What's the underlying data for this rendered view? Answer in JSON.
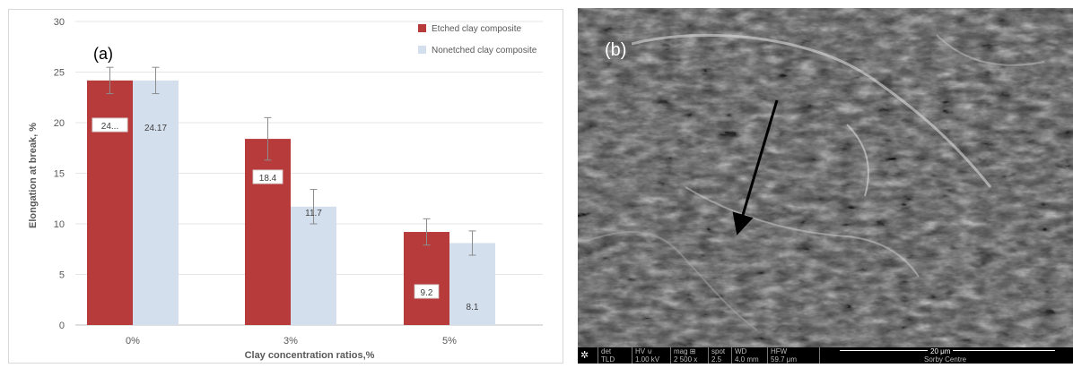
{
  "chart_data": {
    "type": "bar",
    "panel_label": "(a)",
    "xlabel": "Clay concentration ratios,%",
    "ylabel": "Elongation at break, %",
    "ylim": [
      0,
      30
    ],
    "yticks": [
      0,
      5,
      10,
      15,
      20,
      25,
      30
    ],
    "categories": [
      "0%",
      "3%",
      "5%"
    ],
    "grid": true,
    "legend_position": "top-right",
    "series": [
      {
        "name": "Etched clay composite",
        "color": "#b83b3b",
        "values": [
          24.17,
          18.4,
          9.2
        ],
        "errors": [
          1.3,
          2.1,
          1.3
        ],
        "labels": [
          "24...",
          "18.4",
          "9.2"
        ]
      },
      {
        "name": "Nonetched clay composite",
        "color": "#d4dfee",
        "values": [
          24.17,
          11.7,
          8.1
        ],
        "errors": [
          1.3,
          1.7,
          1.2
        ],
        "labels": [
          "24.17",
          "11.7",
          "8.1"
        ]
      }
    ]
  },
  "sem": {
    "panel_label": "(b)",
    "databar": [
      {
        "h": "det",
        "v": "TLD"
      },
      {
        "h": "HV ⊍",
        "v": "1.00 kV"
      },
      {
        "h": "mag ⊞",
        "v": "2 500 x"
      },
      {
        "h": "spot",
        "v": "2.5"
      },
      {
        "h": "WD",
        "v": "4.0 mm"
      },
      {
        "h": "HFW",
        "v": "59.7 μm"
      }
    ],
    "scale_label": "20 μm",
    "centre": "Sorby Centre"
  }
}
